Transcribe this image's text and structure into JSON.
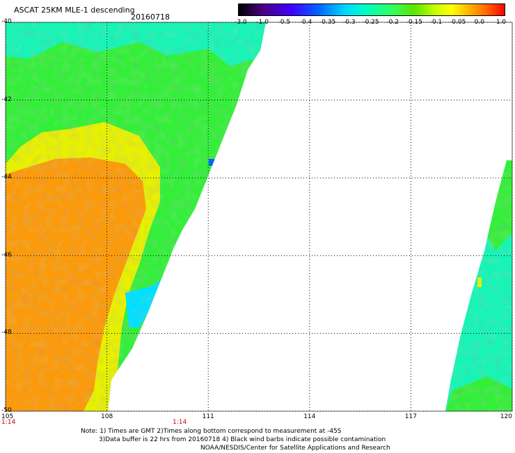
{
  "header": {
    "title": "ASCAT 25KM MLE-1 descending",
    "date": "20160718"
  },
  "colorbar": {
    "ticks": [
      "-3.0",
      "-1.0",
      "-0.5",
      "-0.4",
      "-0.35",
      "-0.3",
      "-0.25",
      "-0.2",
      "-0.15",
      "-0.1",
      "-0.05",
      "0.0",
      "1.0"
    ],
    "colors": [
      "#000000",
      "#4b0082",
      "#3f00ff",
      "#0064ff",
      "#00d8ff",
      "#00ffbf",
      "#32ff5a",
      "#5ce400",
      "#c8ff00",
      "#ffff00",
      "#ffb000",
      "#ff6a00",
      "#ff0000"
    ]
  },
  "map": {
    "lat_labels": [
      "-40",
      "-42",
      "-44",
      "-46",
      "-48",
      "-50"
    ],
    "lon_labels": [
      "105",
      "108",
      "111",
      "114",
      "117",
      "120"
    ],
    "lat_values": [
      -40,
      -42,
      -44,
      -46,
      -48,
      -50
    ],
    "lon_values": [
      105,
      108,
      111,
      114,
      117,
      120
    ],
    "time_labels": [
      "1:14",
      "1:14"
    ],
    "swath_colors": {
      "green": "#34ef3a",
      "teal": "#16f4b6",
      "yellow": "#e6f000",
      "orange": "#fb9a0a",
      "cyan": "#00e0ff",
      "blue": "#0064ff"
    }
  },
  "footer": {
    "line1": "Note: 1) Times are GMT 2)Times along bottom correspond to measurement at -45S",
    "line2": "3)Data buffer is 22 hrs from 20160718 4) Black wind barbs indicate possible contamination",
    "line3": "NOAA/NESDIS/Center for Satellite Applications and Research"
  }
}
